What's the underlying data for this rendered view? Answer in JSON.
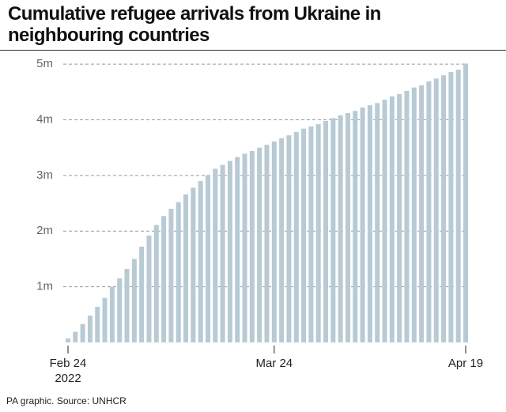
{
  "chart_data": {
    "type": "bar",
    "title": "Cumulative refugee arrivals from Ukraine in neighbouring countries",
    "source": "PA graphic. Source: UNHCR",
    "year_label": "2022",
    "categories": [
      "Feb 24",
      null,
      null,
      null,
      null,
      null,
      null,
      null,
      null,
      null,
      null,
      null,
      null,
      null,
      null,
      null,
      null,
      null,
      null,
      null,
      null,
      null,
      null,
      null,
      null,
      null,
      null,
      null,
      "Mar 24",
      null,
      null,
      null,
      null,
      null,
      null,
      null,
      null,
      null,
      null,
      null,
      null,
      null,
      null,
      null,
      null,
      null,
      null,
      null,
      null,
      null,
      null,
      null,
      null,
      null,
      "Apr 19"
    ],
    "values": [
      0.07,
      0.19,
      0.33,
      0.48,
      0.64,
      0.8,
      1.0,
      1.15,
      1.32,
      1.5,
      1.72,
      1.92,
      2.11,
      2.27,
      2.4,
      2.52,
      2.66,
      2.78,
      2.9,
      3.0,
      3.12,
      3.19,
      3.26,
      3.33,
      3.39,
      3.44,
      3.5,
      3.55,
      3.61,
      3.67,
      3.72,
      3.78,
      3.84,
      3.88,
      3.92,
      3.98,
      4.03,
      4.08,
      4.12,
      4.16,
      4.22,
      4.26,
      4.3,
      4.36,
      4.42,
      4.46,
      4.52,
      4.58,
      4.62,
      4.69,
      4.74,
      4.8,
      4.86,
      4.9,
      5.01
    ],
    "color": "#b8cad4",
    "ylim": [
      0,
      5.2
    ],
    "yticks": [
      {
        "value": 1,
        "label": "1m"
      },
      {
        "value": 2,
        "label": "2m"
      },
      {
        "value": 3,
        "label": "3m"
      },
      {
        "value": 4,
        "label": "4m"
      },
      {
        "value": 5,
        "label": "5m"
      }
    ],
    "grid": true
  }
}
